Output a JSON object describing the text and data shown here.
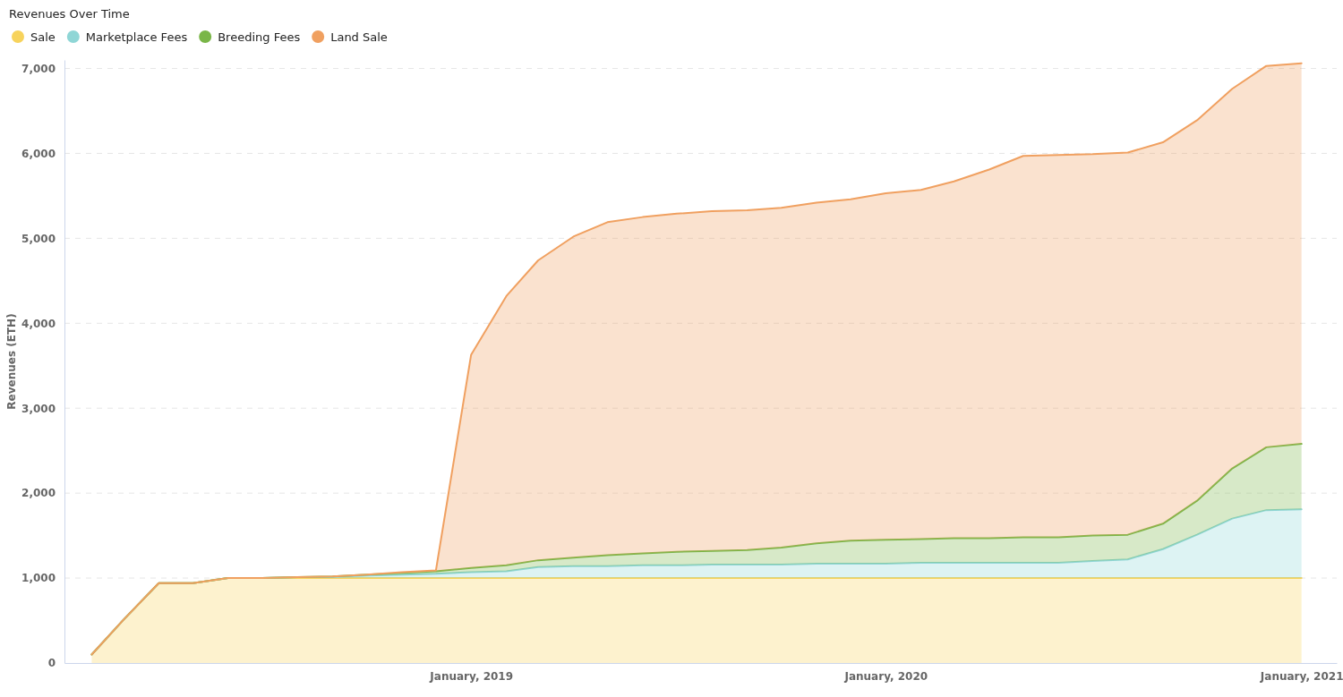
{
  "chart_data": {
    "type": "area",
    "stacked": true,
    "title": "Revenues Over Time",
    "ylabel": "Revenues (ETH)",
    "x": [
      "2018-02",
      "2018-03",
      "2018-04",
      "2018-05",
      "2018-06",
      "2018-07",
      "2018-08",
      "2018-09",
      "2018-10",
      "2018-11",
      "2018-12",
      "2019-01",
      "2019-02",
      "2019-03",
      "2019-04",
      "2019-05",
      "2019-06",
      "2019-07",
      "2019-08",
      "2019-09",
      "2019-10",
      "2019-11",
      "2019-12",
      "2020-01",
      "2020-02",
      "2020-03",
      "2020-04",
      "2020-05",
      "2020-06",
      "2020-07",
      "2020-08",
      "2020-09",
      "2020-10",
      "2020-11",
      "2020-12",
      "2021-01"
    ],
    "series": [
      {
        "name": "Sale",
        "color": "#f7d35c",
        "values": [
          100,
          510,
          940,
          940,
          1000,
          1000,
          1000,
          1000,
          1000,
          1000,
          1000,
          1000,
          1000,
          1000,
          1000,
          1000,
          1000,
          1000,
          1000,
          1000,
          1000,
          1000,
          1000,
          1000,
          1000,
          1000,
          1000,
          1000,
          1000,
          1000,
          1000,
          1000,
          1000,
          1000,
          1000,
          1000
        ]
      },
      {
        "name": "Marketplace Fees",
        "color": "#8fd6d6",
        "values": [
          0,
          0,
          0,
          0,
          0,
          0,
          10,
          10,
          30,
          40,
          50,
          70,
          80,
          130,
          140,
          140,
          150,
          150,
          160,
          160,
          160,
          170,
          170,
          170,
          180,
          180,
          180,
          180,
          180,
          200,
          220,
          340,
          510,
          700,
          800,
          810
        ]
      },
      {
        "name": "Breeding Fees",
        "color": "#7ab648",
        "values": [
          0,
          0,
          0,
          0,
          0,
          0,
          0,
          10,
          10,
          20,
          30,
          50,
          70,
          80,
          100,
          130,
          140,
          160,
          160,
          170,
          200,
          240,
          270,
          280,
          280,
          290,
          290,
          300,
          300,
          300,
          290,
          300,
          400,
          590,
          740,
          770
        ]
      },
      {
        "name": "Land Sale",
        "color": "#f0a060",
        "values": [
          0,
          0,
          0,
          0,
          0,
          0,
          0,
          0,
          0,
          10,
          10,
          2510,
          3170,
          3530,
          3780,
          3920,
          3960,
          3980,
          4000,
          4000,
          4000,
          4010,
          4020,
          4080,
          4110,
          4200,
          4340,
          4490,
          4500,
          4490,
          4500,
          4490,
          4480,
          4470,
          4490,
          4480
        ]
      }
    ],
    "xlim": [
      "2018-01-08",
      "2021-02-01"
    ],
    "xticks": [
      {
        "value": "2019-01",
        "label": "January, 2019"
      },
      {
        "value": "2020-01",
        "label": "January, 2020"
      },
      {
        "value": "2021-01",
        "label": "January, 2021"
      }
    ],
    "ylim": [
      0,
      7100
    ],
    "yticks": [
      0,
      {
        "value": 1000,
        "label": "1,000"
      },
      {
        "value": 2000,
        "label": "2,000"
      },
      {
        "value": 3000,
        "label": "3,000"
      },
      {
        "value": 4000,
        "label": "4,000"
      },
      {
        "value": 5000,
        "label": "5,000"
      },
      {
        "value": 6000,
        "label": "6,000"
      },
      {
        "value": 7000,
        "label": "7,000"
      }
    ],
    "grid": "y",
    "legend": "top left",
    "marker": "none",
    "line_style": "solid"
  }
}
